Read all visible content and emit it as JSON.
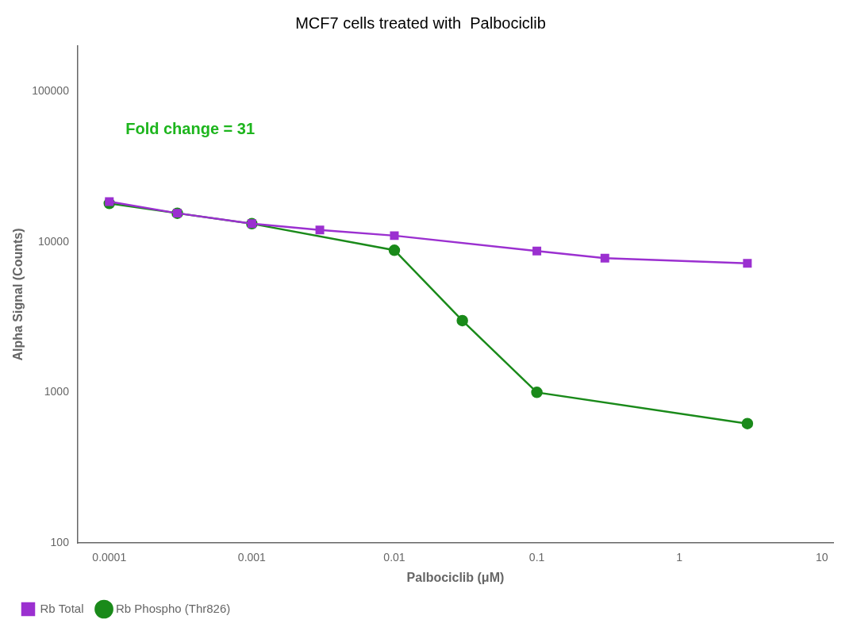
{
  "chart_data": {
    "type": "line",
    "title": "MCF7 cells treated with  Palbociclib",
    "x_label": "Palbociclib (μM)",
    "y_label": "Alpha Signal (Counts)",
    "log": true,
    "grid": false,
    "legend": "lower left",
    "xlim": [
      6e-05,
      12
    ],
    "ylim": [
      100,
      200000
    ],
    "xticks": [
      0.0001,
      0.001,
      0.01,
      0.1,
      1,
      10
    ],
    "yticks": [
      100,
      1000,
      10000,
      100000
    ],
    "series": [
      {
        "name": "Rb Total",
        "color": "#9b30d0",
        "marker": "square",
        "x": [
          0.0001,
          0.0003,
          0.001,
          0.003,
          0.01,
          0.1,
          0.3,
          3.0
        ],
        "values": [
          18500,
          15500,
          13200,
          12000,
          11000,
          8700,
          7800,
          7200
        ],
        "yerr": [
          900,
          200,
          200,
          150,
          150,
          150,
          150,
          150
        ]
      },
      {
        "name": "Rb Phospho (Thr826)",
        "color": "#1a8a1a",
        "marker": "circle",
        "x": [
          0.0001,
          0.0003,
          0.001,
          0.01,
          0.03,
          0.1,
          3.0
        ],
        "values": [
          18000,
          15500,
          13200,
          8800,
          3000,
          1000,
          620
        ]
      }
    ],
    "annotations": [
      {
        "text": "Fold change = 31",
        "x": 0.00013,
        "y": 52000,
        "color": "#1db51d"
      }
    ]
  }
}
